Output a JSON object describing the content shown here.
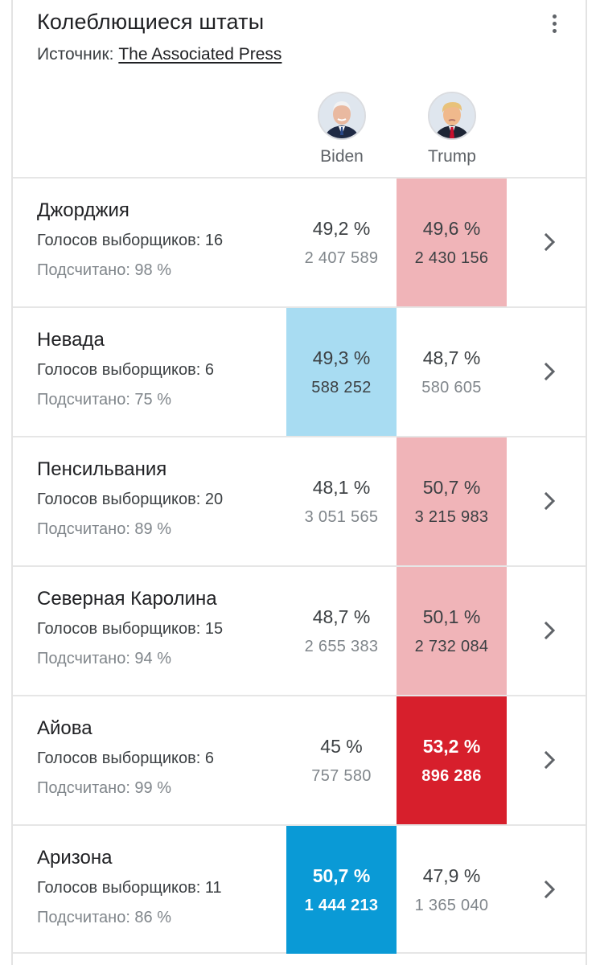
{
  "header": {
    "title": "Колеблющиеся штаты",
    "source_prefix": "Источник:",
    "source_link": "The Associated Press",
    "menu_icon": "more-vert-icon"
  },
  "candidates": [
    {
      "name": "Biden",
      "color": "#0a9ad6"
    },
    {
      "name": "Trump",
      "color": "#d71f2c"
    }
  ],
  "states": [
    {
      "name": "Джорджия",
      "electoral": "Голосов выборщиков: 16",
      "counted": "Подсчитано: 98 %",
      "biden": {
        "pct": "49,2 %",
        "votes": "2 407 589",
        "lead": ""
      },
      "trump": {
        "pct": "49,6 %",
        "votes": "2 430 156",
        "lead": "light-red"
      }
    },
    {
      "name": "Невада",
      "electoral": "Голосов выборщиков: 6",
      "counted": "Подсчитано: 75 %",
      "biden": {
        "pct": "49,3 %",
        "votes": "588 252",
        "lead": "light-blue"
      },
      "trump": {
        "pct": "48,7 %",
        "votes": "580 605",
        "lead": ""
      }
    },
    {
      "name": "Пенсильвания",
      "electoral": "Голосов выборщиков: 20",
      "counted": "Подсчитано: 89 %",
      "biden": {
        "pct": "48,1 %",
        "votes": "3 051 565",
        "lead": ""
      },
      "trump": {
        "pct": "50,7 %",
        "votes": "3 215 983",
        "lead": "light-red"
      }
    },
    {
      "name": "Северная Каролина",
      "electoral": "Голосов выборщиков: 15",
      "counted": "Подсчитано: 94 %",
      "biden": {
        "pct": "48,7 %",
        "votes": "2 655 383",
        "lead": ""
      },
      "trump": {
        "pct": "50,1 %",
        "votes": "2 732 084",
        "lead": "light-red"
      }
    },
    {
      "name": "Айова",
      "electoral": "Голосов выборщиков: 6",
      "counted": "Подсчитано: 99 %",
      "biden": {
        "pct": "45 %",
        "votes": "757 580",
        "lead": ""
      },
      "trump": {
        "pct": "53,2 %",
        "votes": "896 286",
        "lead": "red"
      }
    },
    {
      "name": "Аризона",
      "electoral": "Голосов выборщиков: 11",
      "counted": "Подсчитано: 86 %",
      "biden": {
        "pct": "50,7 %",
        "votes": "1 444 213",
        "lead": "blue"
      },
      "trump": {
        "pct": "47,9 %",
        "votes": "1 365 040",
        "lead": ""
      }
    }
  ]
}
